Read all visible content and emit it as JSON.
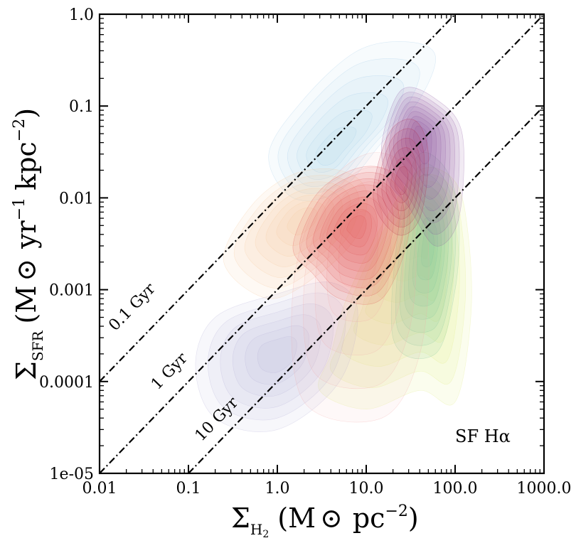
{
  "chart_data": {
    "type": "contour",
    "x_scale": "log",
    "y_scale": "log",
    "xlim": [
      0.01,
      1000
    ],
    "ylim": [
      1e-05,
      1
    ],
    "x_ticks": [
      {
        "value": 0.01,
        "label": "0.01"
      },
      {
        "value": 0.1,
        "label": "0.1"
      },
      {
        "value": 1,
        "label": "1.0"
      },
      {
        "value": 10,
        "label": "10.0"
      },
      {
        "value": 100,
        "label": "100.0"
      },
      {
        "value": 1000,
        "label": "1000.0"
      }
    ],
    "y_ticks": [
      {
        "value": 1e-05,
        "label": "1e-05"
      },
      {
        "value": 0.0001,
        "label": "0.0001"
      },
      {
        "value": 0.001,
        "label": "0.001"
      },
      {
        "value": 0.01,
        "label": "0.01"
      },
      {
        "value": 0.1,
        "label": "0.1"
      },
      {
        "value": 1,
        "label": "1.0"
      }
    ],
    "xlabel": {
      "main": "Σ",
      "sub": "H",
      "sub2": "2",
      "units": "(M",
      "sun": "⊙",
      "units2": "pc",
      "exp": "−2",
      "close": ")"
    },
    "ylabel": {
      "main": "Σ",
      "sub": "SFR",
      "units": "(M",
      "sun": "⊙",
      "units2": "yr",
      "exp1": "−1",
      "units3": "kpc",
      "exp2": "−2",
      "close": ")"
    },
    "annotation": "SF Hα",
    "depletion_lines": [
      {
        "label": "0.1 Gyr",
        "tdep_gyr": 0.1
      },
      {
        "label": "1 Gyr",
        "tdep_gyr": 1
      },
      {
        "label": "10 Gyr",
        "tdep_gyr": 10
      }
    ],
    "series": [
      {
        "name": "light-blue",
        "color": "#9ec9e8",
        "center": [
          4,
          0.03
        ],
        "levels": [
          [
            30,
            0.2
          ],
          [
            15,
            0.1
          ],
          [
            8,
            0.05
          ],
          [
            30,
            0.15
          ]
        ]
      },
      {
        "name": "yellow-green",
        "color": "#e2ef86",
        "center": [
          40,
          0.005
        ],
        "levels": [
          [
            3,
            0.0001
          ],
          [
            60,
            8e-05
          ],
          [
            100,
            0.01
          ]
        ]
      },
      {
        "name": "green",
        "color": "#7fc79a",
        "center": [
          50,
          0.003
        ],
        "levels": [
          [
            40,
            0.001
          ],
          [
            60,
            0.006
          ]
        ]
      },
      {
        "name": "lavender",
        "color": "#b4b0d8",
        "center": [
          1,
          0.0002
        ],
        "levels": [
          [
            0.2,
            0.0002
          ],
          [
            3,
            0.0003
          ],
          [
            0.5,
            0.0001
          ]
        ]
      },
      {
        "name": "peach",
        "color": "#f6c99a",
        "center": [
          2,
          0.006
        ],
        "levels": [
          [
            0.3,
            0.005
          ],
          [
            1,
            0.015
          ],
          [
            6,
            0.008
          ]
        ]
      },
      {
        "name": "pink",
        "color": "#f4a6a6",
        "center": [
          8,
          0.004
        ],
        "levels": [
          [
            5,
            0.0001
          ],
          [
            30,
            0.0002
          ]
        ]
      },
      {
        "name": "red",
        "color": "#e05050",
        "center": [
          8,
          0.005
        ],
        "levels": [
          [
            3,
            0.003
          ],
          [
            15,
            0.008
          ],
          [
            10,
            0.002
          ]
        ]
      },
      {
        "name": "purple",
        "color": "#8a4fa0",
        "center": [
          40,
          0.05
        ],
        "levels": [
          [
            40,
            0.06
          ],
          [
            60,
            0.02
          ],
          [
            30,
            0.1
          ]
        ]
      },
      {
        "name": "dark-red",
        "color": "#b02040",
        "center": [
          25,
          0.015
        ],
        "levels": [
          [
            35,
            0.04
          ],
          [
            20,
            0.008
          ]
        ]
      }
    ]
  }
}
